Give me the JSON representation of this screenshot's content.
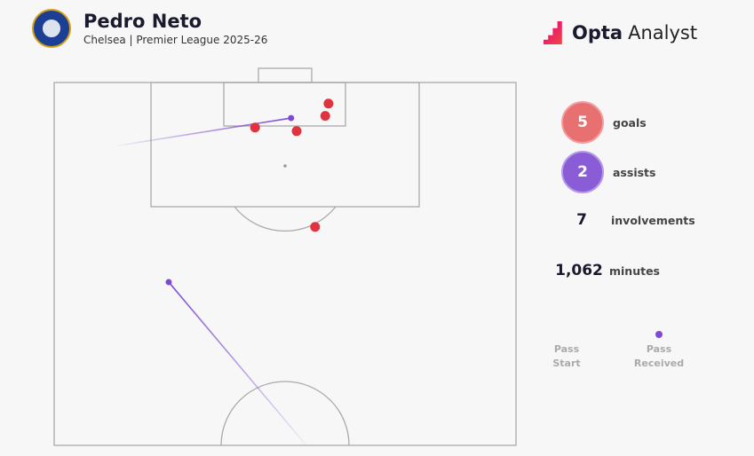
{
  "header": {
    "player": "Pedro Neto",
    "subtitle": "Chelsea | Premier League 2025-26",
    "brand": {
      "bold": "Opta",
      "light": "Analyst"
    }
  },
  "stats": [
    {
      "value": "5",
      "label": "goals",
      "color": "#e87070"
    },
    {
      "value": "2",
      "label": "assists",
      "color": "#8a5cd6"
    },
    {
      "value": "7",
      "label": "involvements"
    },
    {
      "value": "1,062",
      "label": "minutes"
    }
  ],
  "legend": {
    "start": "Pass Start",
    "end": "Pass Received"
  },
  "chart_data": {
    "type": "scatter",
    "description_units": "Opta pitch coordinates (x length 0-100, y width 0-100)",
    "pitch": "half",
    "goals": [
      {
        "x": 97.1,
        "y": 59.4
      },
      {
        "x": 95.4,
        "y": 58.7
      },
      {
        "x": 93.8,
        "y": 43.5
      },
      {
        "x": 93.3,
        "y": 52.5
      },
      {
        "x": 80.1,
        "y": 56.5
      }
    ],
    "assists": [
      {
        "start": {
          "x": 91.3,
          "y": 13.8
        },
        "end": {
          "x": 95.1,
          "y": 51.3
        }
      },
      {
        "start": {
          "x": 50,
          "y": 54.6
        },
        "end": {
          "x": 72.5,
          "y": 24.8
        }
      }
    ],
    "colors": {
      "goal": "#e0323f",
      "assist": "#7b4bd1"
    }
  }
}
